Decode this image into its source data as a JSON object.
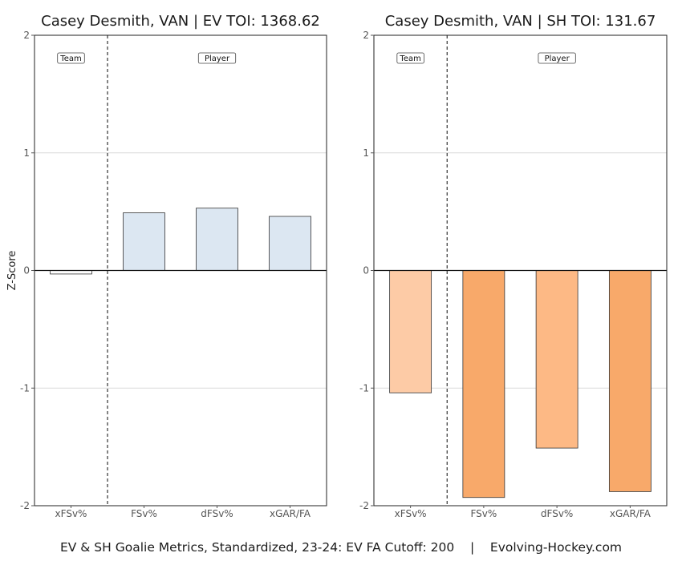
{
  "caption": {
    "text": "EV & SH Goalie Metrics, Standardized, 23-24: EV FA Cutoff: 200",
    "separator": "|",
    "source": "Evolving-Hockey.com"
  },
  "chart_data": [
    {
      "type": "bar",
      "title": "Casey Desmith, VAN | EV TOI: 1368.62",
      "ylabel": "Z-Score",
      "xlabel": "",
      "categories": [
        "xFSv%",
        "FSv%",
        "dFSv%",
        "xGAR/FA"
      ],
      "values": [
        -0.03,
        0.49,
        0.53,
        0.46
      ],
      "bar_colors": [
        "#ffffff",
        "#dce7f2",
        "#dce7f2",
        "#dce7f2"
      ],
      "ylim": [
        -2,
        2
      ],
      "yticks": [
        -2,
        -1,
        0,
        1,
        2
      ],
      "grid": true,
      "divider_after_index": 0,
      "group_labels": [
        "Team",
        "Player"
      ]
    },
    {
      "type": "bar",
      "title": "Casey Desmith, VAN | SH TOI: 131.67",
      "ylabel": "",
      "xlabel": "",
      "categories": [
        "xFSv%",
        "FSv%",
        "dFSv%",
        "xGAR/FA"
      ],
      "values": [
        -1.04,
        -1.93,
        -1.51,
        -1.88
      ],
      "bar_colors": [
        "#fdcba6",
        "#f8a96a",
        "#fdb985",
        "#f8a96a"
      ],
      "ylim": [
        -2,
        2
      ],
      "yticks": [
        -2,
        -1,
        0,
        1,
        2
      ],
      "grid": true,
      "divider_after_index": 0,
      "group_labels": [
        "Team",
        "Player"
      ]
    }
  ]
}
